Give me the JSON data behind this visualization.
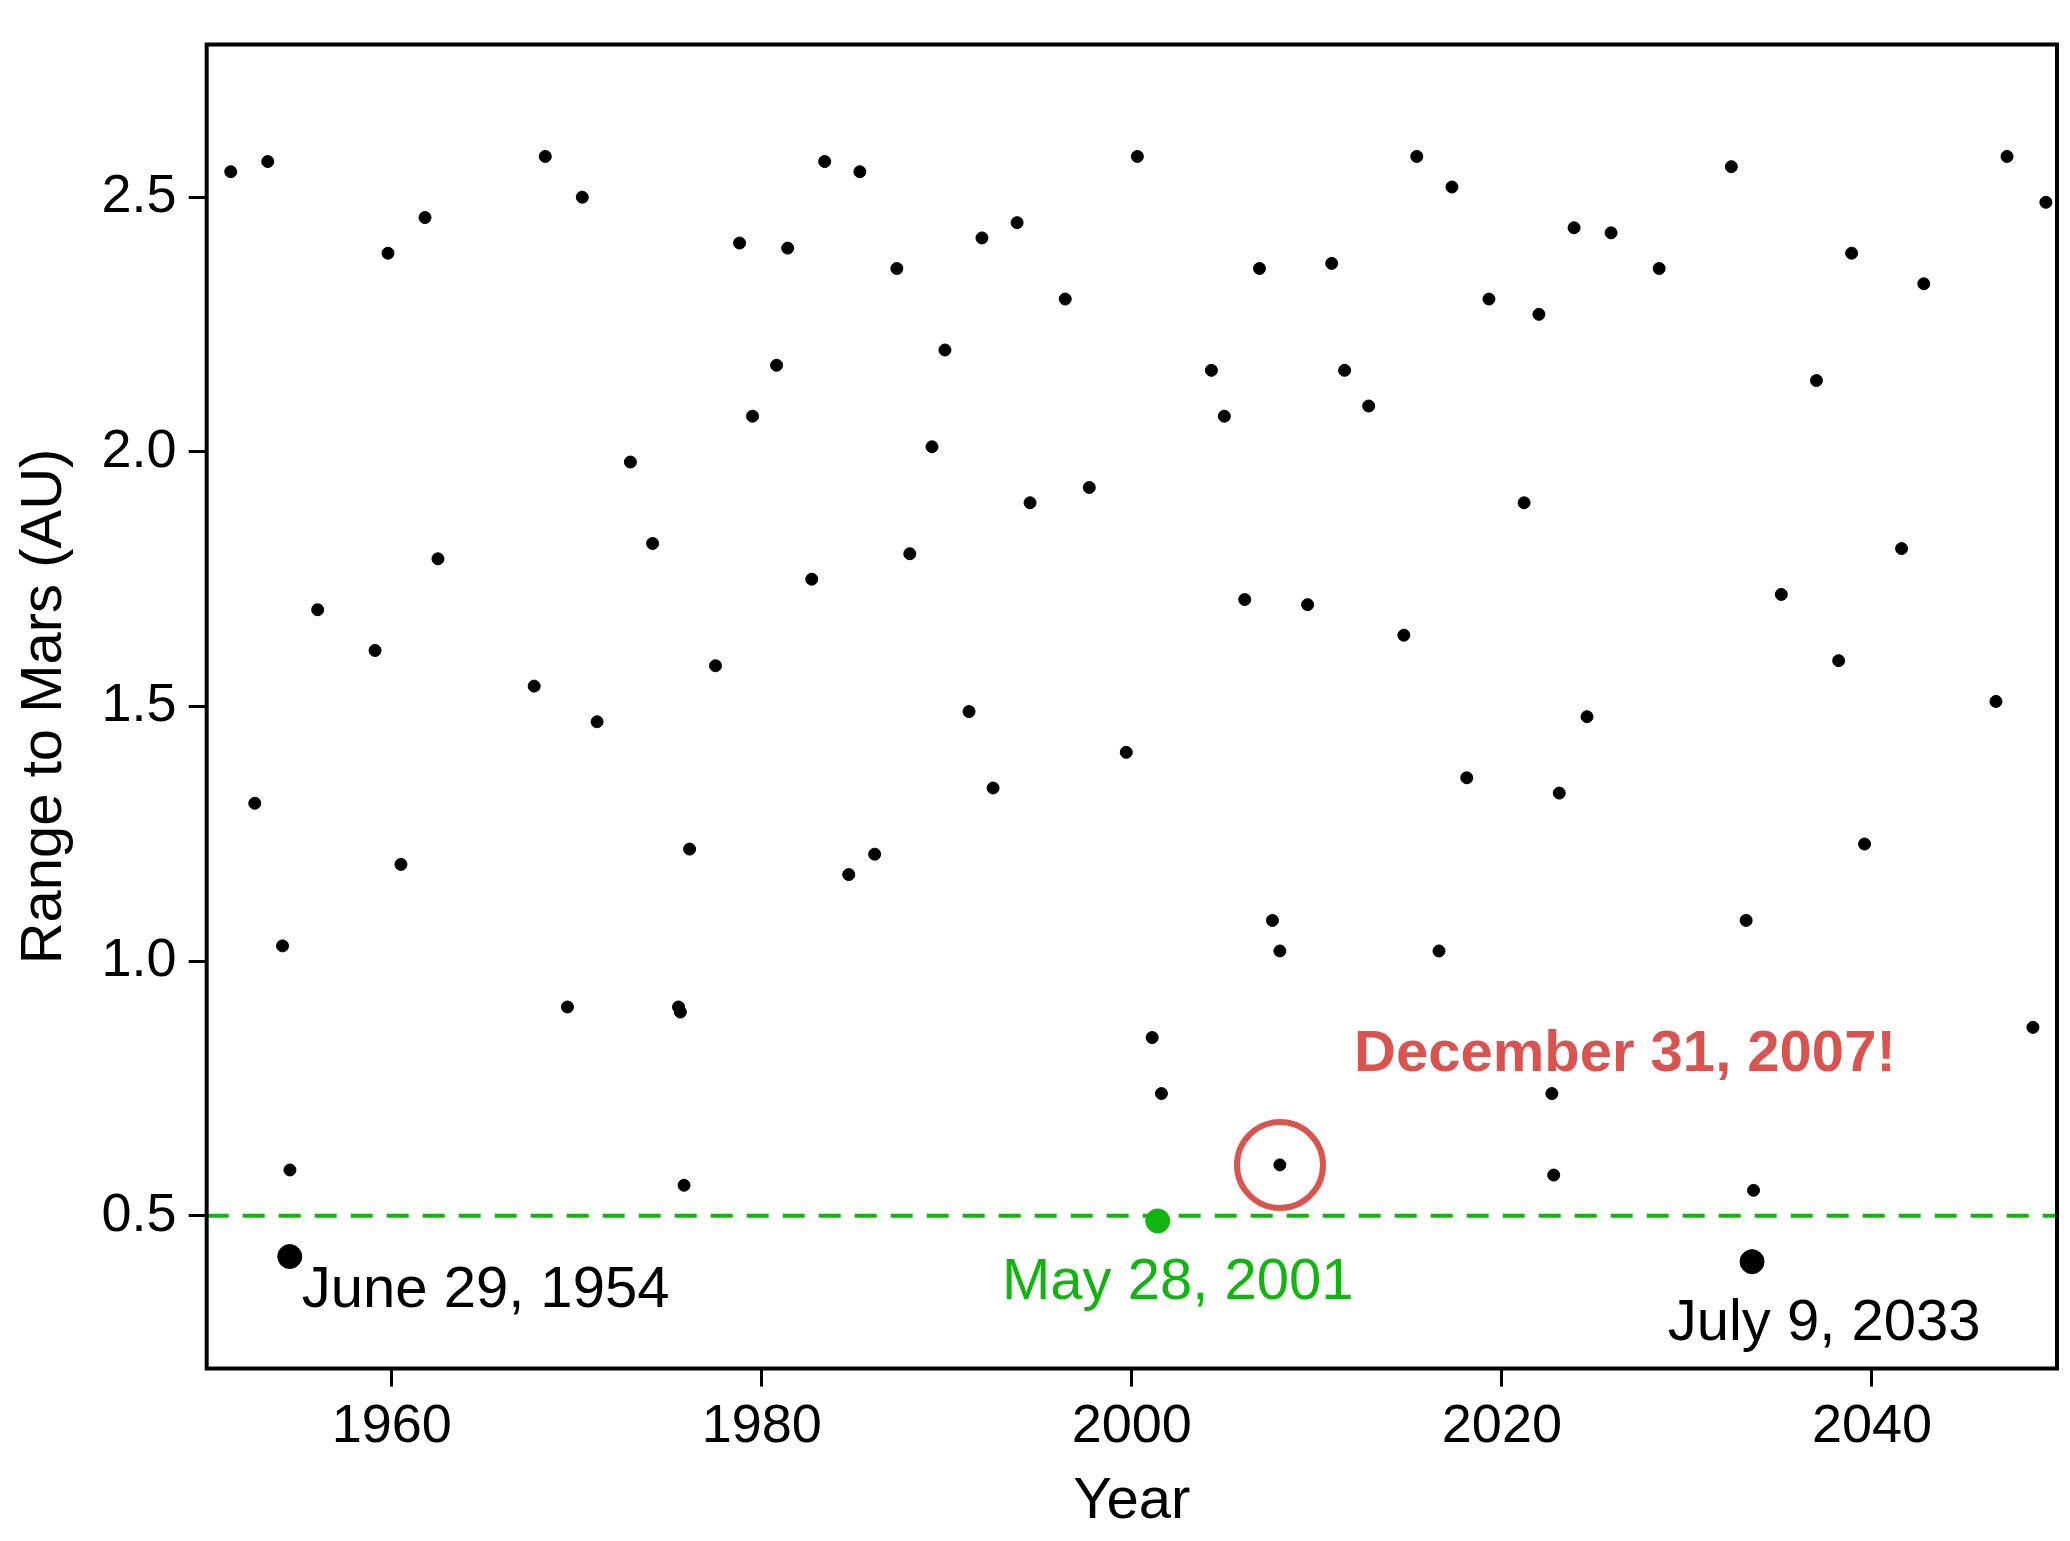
{
  "chart_data": {
    "type": "scatter",
    "xlabel": "Year",
    "ylabel": "Range to Mars (AU)",
    "xlim": [
      1950,
      2050
    ],
    "xticks": [
      1960,
      1980,
      2000,
      2020,
      2040
    ],
    "ylim": [
      0.2,
      2.8
    ],
    "yticks": [
      {
        "value": 0.5,
        "label": "0.5"
      },
      {
        "value": 1.0,
        "label": "1.0"
      },
      {
        "value": 1.5,
        "label": "1.5"
      },
      {
        "value": 2.0,
        "label": "2.0"
      },
      {
        "value": 2.5,
        "label": "2.5"
      }
    ],
    "grid": false,
    "legend": false,
    "marker": "circle",
    "series": [
      {
        "color": "#000000",
        "x": [
          1951.3,
          1953.3,
          1952.6,
          1954.1,
          1954.5,
          1956.0,
          1959.1,
          1959.8,
          1960.5,
          1961.8,
          1962.5,
          1967.7,
          1968.3,
          1969.5,
          1970.3,
          1971.1,
          1972.9,
          1974.1,
          1975.5,
          1975.6,
          1975.8,
          1976.1,
          1977.5,
          1978.8,
          1979.5,
          1980.8,
          1981.4,
          1982.7,
          1983.4,
          1984.7,
          1985.3,
          1986.1,
          1987.3,
          1988.0,
          1989.2,
          1989.9,
          1991.2,
          1991.9,
          1992.5,
          1993.8,
          1994.5,
          1996.4,
          1997.7,
          1999.7,
          2000.3,
          2001.1,
          2001.6,
          2004.3,
          2005.0,
          2006.1,
          2006.9,
          2007.6,
          2008.0,
          2008.0,
          2009.5,
          2010.8,
          2011.5,
          2012.8,
          2014.7,
          2015.4,
          2016.6,
          2017.3,
          2018.1,
          2019.3,
          2021.2,
          2022.0,
          2022.7,
          2022.8,
          2023.1,
          2023.9,
          2024.6,
          2025.9,
          2028.5,
          2032.4,
          2033.2,
          2033.6,
          2035.1,
          2037.0,
          2038.2,
          2038.9,
          2039.6,
          2041.6,
          2042.8,
          2046.7,
          2047.3,
          2048.7,
          2049.4
        ],
        "values": [
          2.55,
          2.57,
          1.31,
          1.03,
          0.59,
          1.69,
          1.61,
          2.39,
          1.19,
          2.46,
          1.79,
          1.54,
          2.58,
          0.91,
          2.5,
          1.47,
          1.98,
          1.82,
          0.91,
          0.9,
          0.56,
          1.22,
          1.58,
          2.41,
          2.07,
          2.17,
          2.4,
          1.75,
          2.57,
          1.17,
          2.55,
          1.21,
          2.36,
          1.8,
          2.01,
          2.2,
          1.49,
          2.42,
          1.34,
          2.45,
          1.9,
          2.3,
          1.93,
          1.41,
          2.58,
          0.85,
          0.74,
          2.16,
          2.07,
          1.71,
          2.36,
          1.08,
          1.02,
          0.6,
          1.7,
          2.37,
          2.16,
          2.09,
          1.64,
          2.58,
          1.02,
          2.52,
          1.36,
          2.3,
          1.9,
          2.27,
          0.74,
          0.58,
          1.33,
          2.44,
          1.48,
          2.43,
          2.36,
          2.56,
          1.08,
          0.55,
          1.72,
          2.14,
          1.59,
          2.39,
          1.23,
          1.81,
          2.33,
          1.51,
          2.58,
          0.87,
          2.49
        ]
      },
      {
        "color": "#000000",
        "x": [
          1954.49,
          2033.52
        ],
        "values": [
          0.42,
          0.41
        ]
      },
      {
        "color": "#11b50f",
        "x": [
          2001.4
        ],
        "values": [
          0.49
        ]
      }
    ],
    "ref_lines": [
      {
        "axis": "y",
        "value": 0.5,
        "color": "#11b50f",
        "line_style": "dashed"
      }
    ],
    "annotations": [
      {
        "text": "June 29, 1954",
        "x": 1954.49,
        "y": 0.42
      },
      {
        "text": "May 28, 2001",
        "x": 2001.4,
        "y": 0.49
      },
      {
        "text": "July 9, 2033",
        "x": 2033.52,
        "y": 0.41
      },
      {
        "text": "December 31, 2007!",
        "x": 2008.0,
        "y": 0.6
      }
    ]
  }
}
